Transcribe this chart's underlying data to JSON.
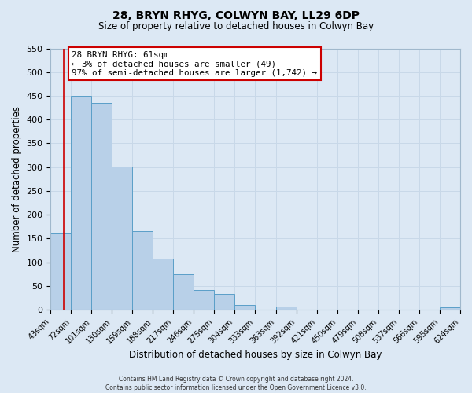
{
  "title": "28, BRYN RHYG, COLWYN BAY, LL29 6DP",
  "subtitle": "Size of property relative to detached houses in Colwyn Bay",
  "xlabel": "Distribution of detached houses by size in Colwyn Bay",
  "ylabel": "Number of detached properties",
  "bin_edges": [
    43,
    72,
    101,
    130,
    159,
    188,
    217,
    246,
    275,
    304,
    333,
    363,
    392,
    421,
    450,
    479,
    508,
    537,
    566,
    595,
    624
  ],
  "bar_heights": [
    160,
    450,
    435,
    302,
    165,
    107,
    74,
    42,
    33,
    10,
    0,
    7,
    0,
    0,
    0,
    0,
    0,
    0,
    0,
    5
  ],
  "bar_color": "#b8d0e8",
  "bar_edge_color": "#5a9fc8",
  "property_line_x": 61,
  "property_line_color": "#cc0000",
  "annotation_text": "28 BRYN RHYG: 61sqm\n← 3% of detached houses are smaller (49)\n97% of semi-detached houses are larger (1,742) →",
  "annotation_box_color": "#ffffff",
  "annotation_box_edge_color": "#cc0000",
  "ylim": [
    0,
    550
  ],
  "yticks": [
    0,
    50,
    100,
    150,
    200,
    250,
    300,
    350,
    400,
    450,
    500,
    550
  ],
  "grid_color": "#c8d8e8",
  "background_color": "#dce8f4",
  "footer_line1": "Contains HM Land Registry data © Crown copyright and database right 2024.",
  "footer_line2": "Contains public sector information licensed under the Open Government Licence v3.0."
}
